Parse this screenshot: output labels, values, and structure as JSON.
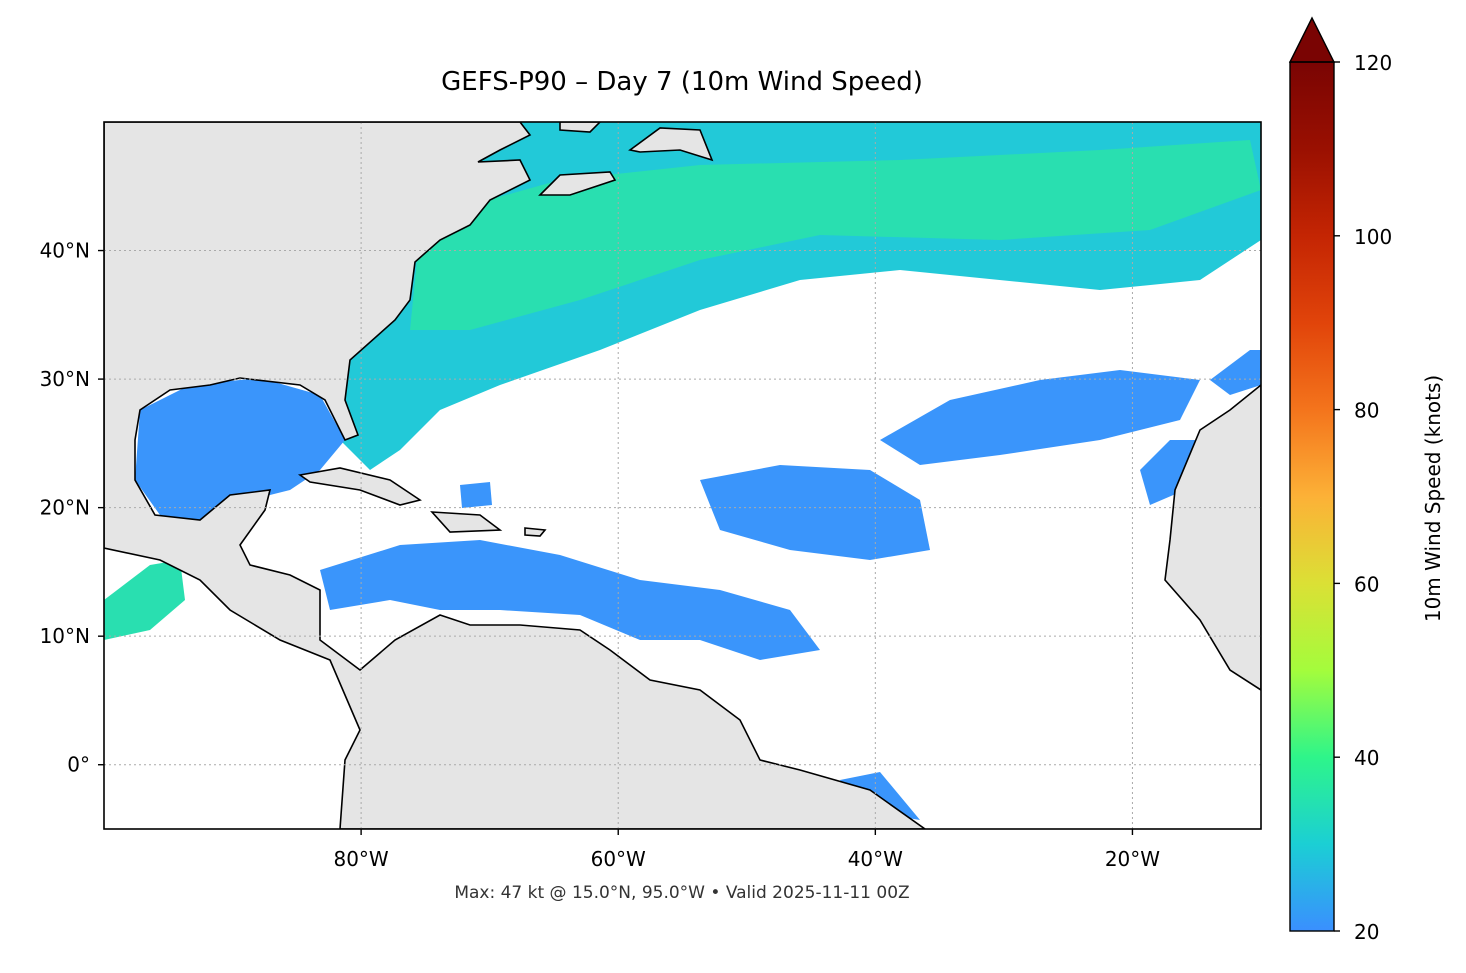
{
  "chart_data": {
    "type": "map",
    "title": "GEFS-P90 – Day 7 (10m Wind Speed)",
    "footer": "Max: 47 kt @ 15.0°N, 95.0°W • Valid 2025-11-11 00Z",
    "xlim": [
      -100,
      -10
    ],
    "ylim": [
      -5,
      50
    ],
    "xticks": [
      {
        "value": -80,
        "label": "80°W"
      },
      {
        "value": -60,
        "label": "60°W"
      },
      {
        "value": -40,
        "label": "40°W"
      },
      {
        "value": -20,
        "label": "20°W"
      }
    ],
    "yticks": [
      {
        "value": 0,
        "label": "0°"
      },
      {
        "value": 10,
        "label": "10°N"
      },
      {
        "value": 20,
        "label": "20°N"
      },
      {
        "value": 30,
        "label": "30°N"
      },
      {
        "value": 40,
        "label": "40°N"
      }
    ],
    "grid": true,
    "colorbar": {
      "label": "10m Wind Speed (knots)",
      "lim": [
        20,
        120
      ],
      "ticks": [
        20,
        40,
        60,
        80,
        100,
        120
      ],
      "colors": [
        "#3a8fff",
        "#1bcfd4",
        "#2ef58a",
        "#a4fc3c",
        "#dbe035",
        "#fcb137",
        "#f4741c",
        "#e1440a",
        "#c42503",
        "#9a1001",
        "#7a0403"
      ]
    }
  }
}
